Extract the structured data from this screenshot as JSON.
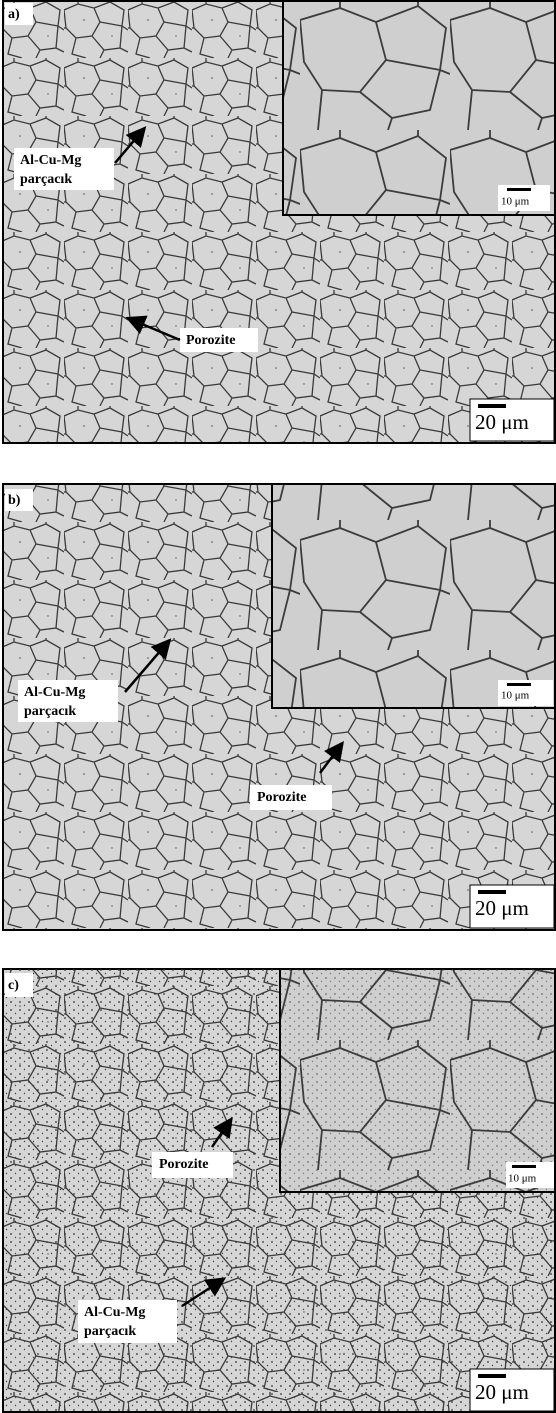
{
  "panels": [
    {
      "label": "a)",
      "particle_label": [
        "Al-Cu-Mg",
        "parçacık"
      ],
      "porosity_label": "Porozite",
      "inset_scale": "10 μm",
      "scale": "20 μm"
    },
    {
      "label": "b)",
      "particle_label": [
        "Al-Cu-Mg",
        "parçacık"
      ],
      "porosity_label": "Porozite",
      "inset_scale": "10 μm",
      "scale": "20 μm"
    },
    {
      "label": "c)",
      "particle_label": [
        "Al-Cu-Mg",
        "parçacık"
      ],
      "porosity_label": "Porozite",
      "inset_scale": "10 μm",
      "scale": "20 μm"
    }
  ]
}
